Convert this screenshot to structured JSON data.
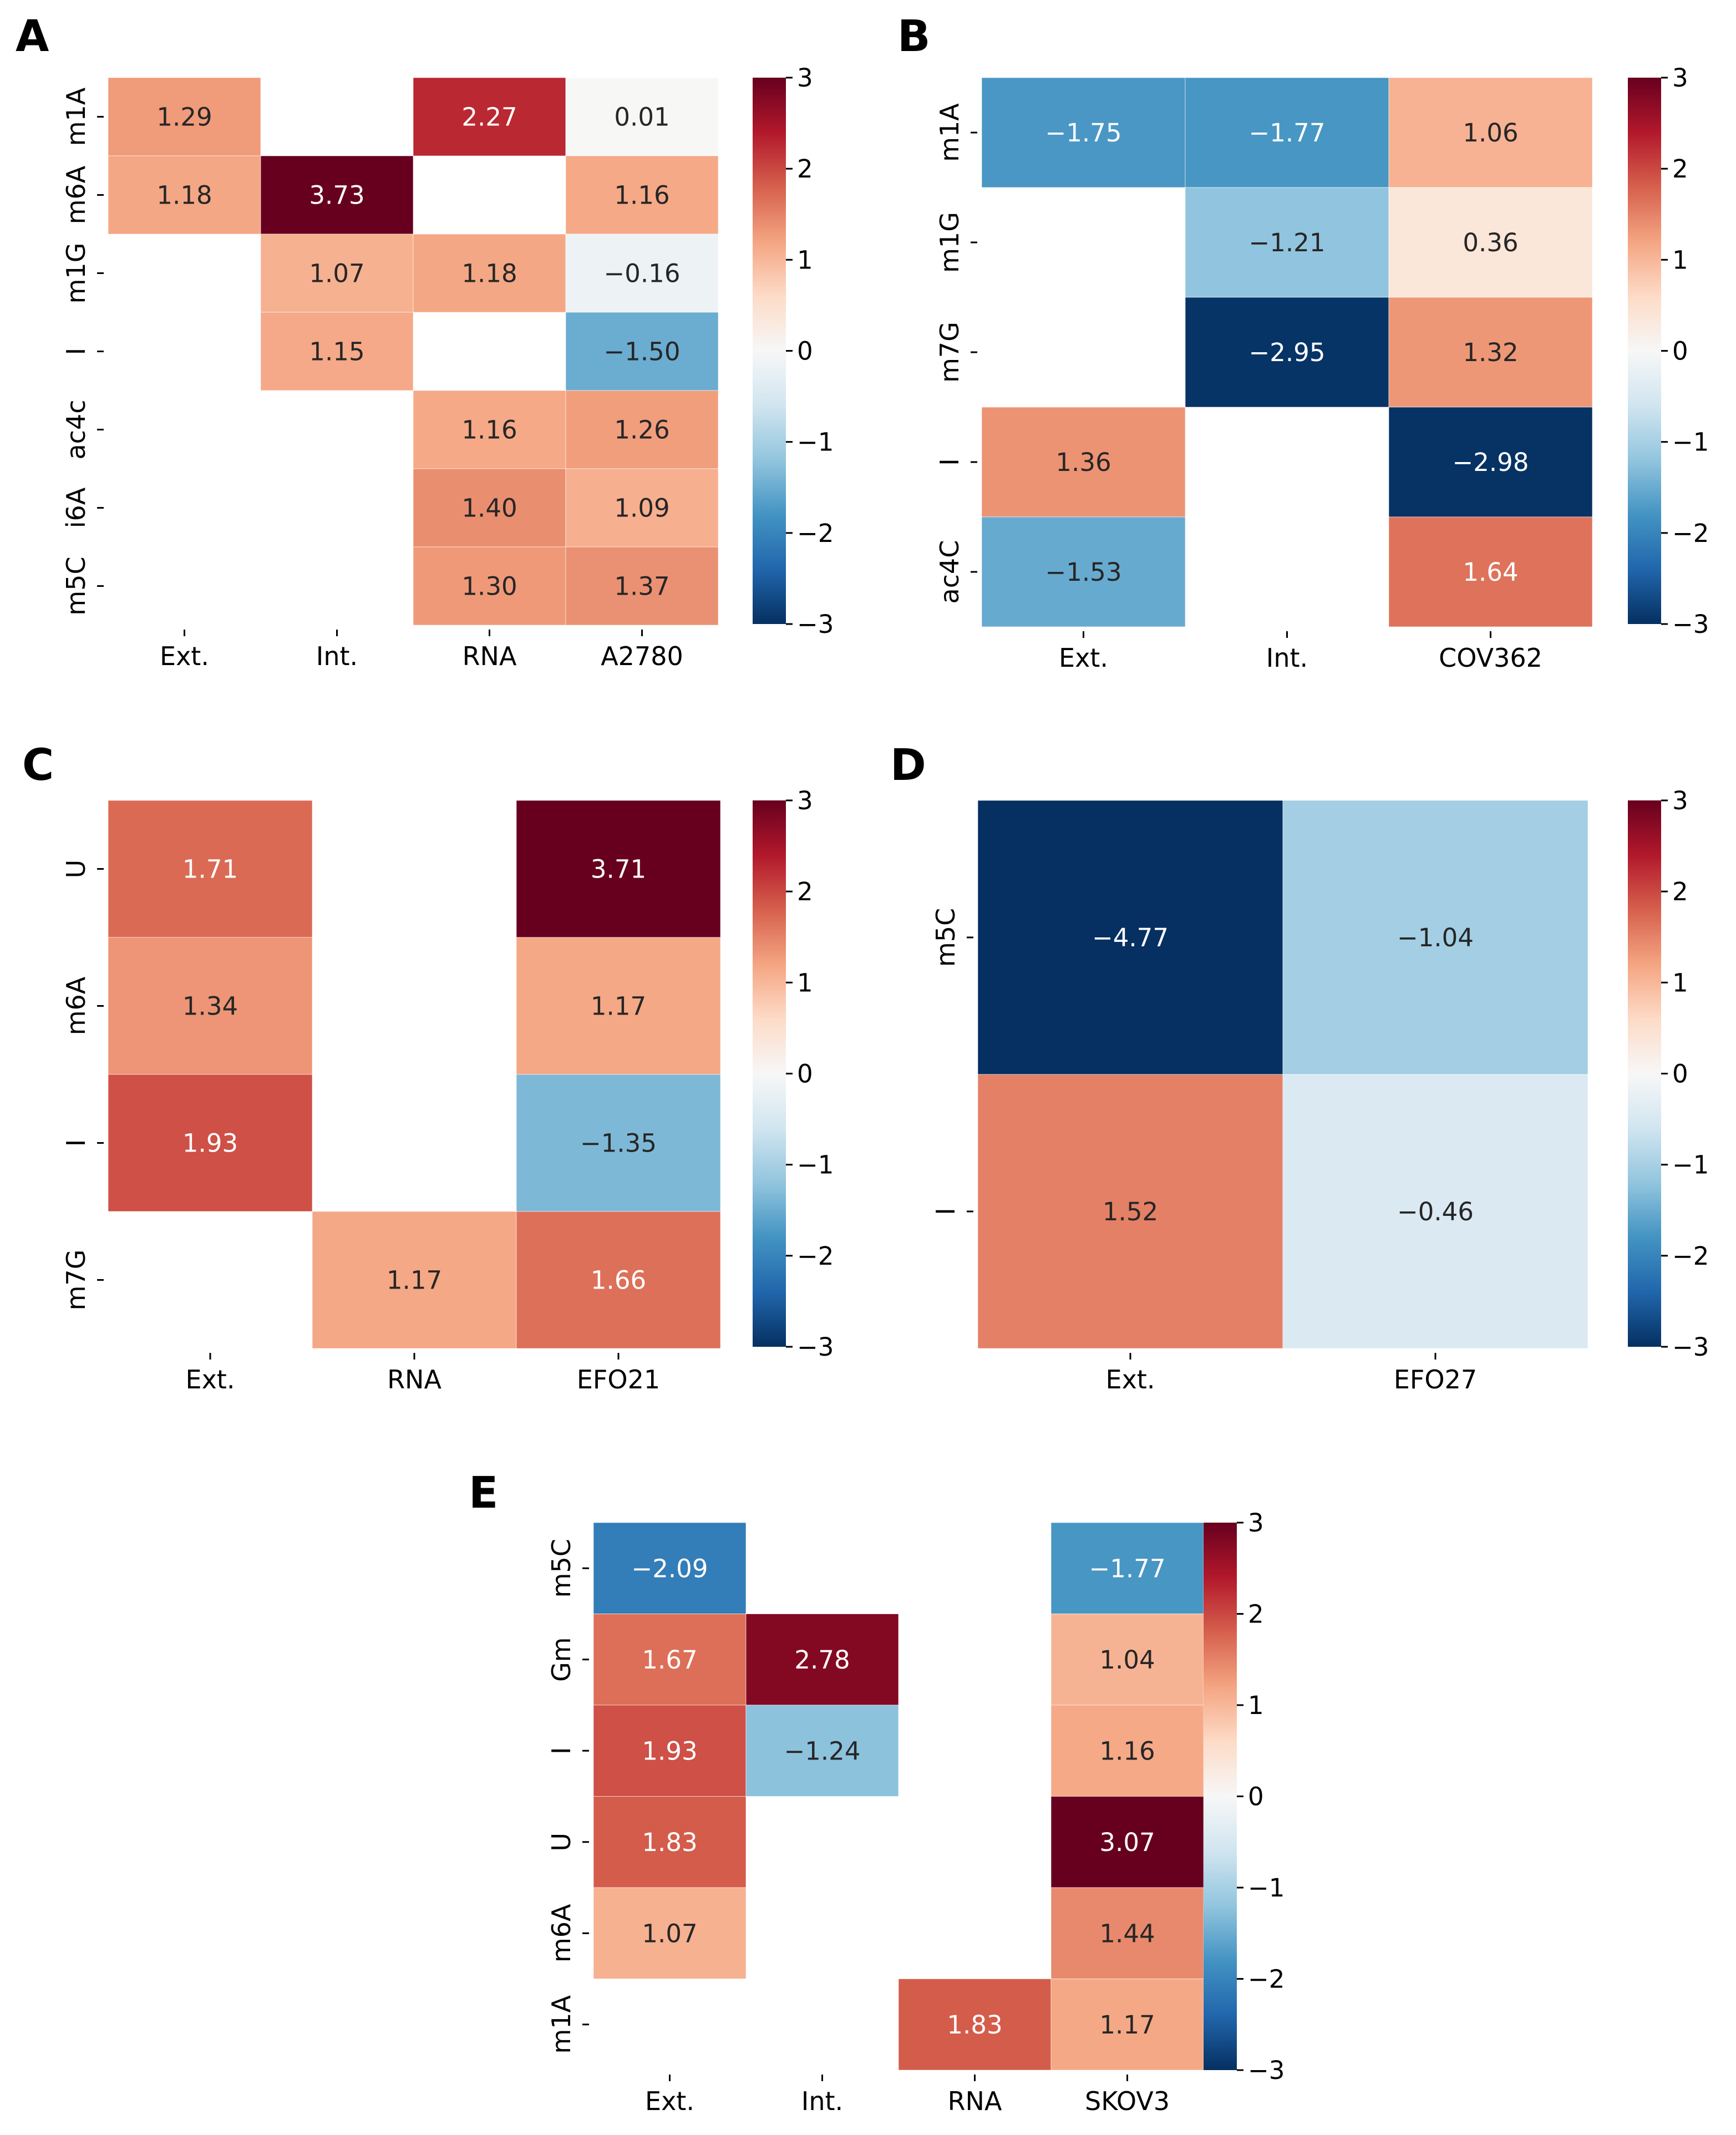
{
  "colormap": {
    "name": "RdBu_r",
    "vmin": -3,
    "vmax": 3,
    "stops": [
      "#053061",
      "#2166ac",
      "#4393c3",
      "#92c5de",
      "#d1e5f0",
      "#f7f7f7",
      "#fddbc7",
      "#f4a582",
      "#d6604d",
      "#b2182b",
      "#67001f"
    ],
    "ticks": [
      "3",
      "2",
      "1",
      "0",
      "−1",
      "−2",
      "−3"
    ]
  },
  "chart_data": [
    {
      "type": "heatmap",
      "panel": "A",
      "rows": [
        "m1A",
        "m6A",
        "m1G",
        "I",
        "ac4c",
        "i6A",
        "m5C"
      ],
      "columns": [
        "Ext.",
        "Int.",
        "RNA",
        "A2780"
      ],
      "values": [
        [
          1.29,
          null,
          2.27,
          0.01
        ],
        [
          1.18,
          3.73,
          null,
          1.16
        ],
        [
          null,
          1.07,
          1.18,
          -0.16
        ],
        [
          null,
          1.15,
          null,
          -1.5
        ],
        [
          null,
          null,
          1.16,
          1.26
        ],
        [
          null,
          null,
          1.4,
          1.09
        ],
        [
          null,
          null,
          1.3,
          1.37
        ]
      ],
      "labels": [
        [
          "1.29",
          "",
          "2.27",
          "0.01"
        ],
        [
          "1.18",
          "3.73",
          "",
          "1.16"
        ],
        [
          "",
          "1.07",
          "1.18",
          "−0.16"
        ],
        [
          "",
          "1.15",
          "",
          "−1.50"
        ],
        [
          "",
          "",
          "1.16",
          "1.26"
        ],
        [
          "",
          "",
          "1.40",
          "1.09"
        ],
        [
          "",
          "",
          "1.30",
          "1.37"
        ]
      ],
      "colorbar_range": [
        -3,
        3
      ]
    },
    {
      "type": "heatmap",
      "panel": "B",
      "rows": [
        "m1A",
        "m1G",
        "m7G",
        "I",
        "ac4C"
      ],
      "columns": [
        "Ext.",
        "Int.",
        "COV362"
      ],
      "values": [
        [
          -1.75,
          -1.77,
          1.06
        ],
        [
          null,
          -1.21,
          0.36
        ],
        [
          null,
          -2.95,
          1.32
        ],
        [
          1.36,
          null,
          -2.98
        ],
        [
          -1.53,
          null,
          1.64
        ]
      ],
      "labels": [
        [
          "−1.75",
          "−1.77",
          "1.06"
        ],
        [
          "",
          "−1.21",
          "0.36"
        ],
        [
          "",
          "−2.95",
          "1.32"
        ],
        [
          "1.36",
          "",
          "−2.98"
        ],
        [
          "−1.53",
          "",
          "1.64"
        ]
      ],
      "colorbar_range": [
        -3,
        3
      ]
    },
    {
      "type": "heatmap",
      "panel": "C",
      "rows": [
        "U",
        "m6A",
        "I",
        "m7G"
      ],
      "columns": [
        "Ext.",
        "RNA",
        "EFO21"
      ],
      "values": [
        [
          1.71,
          null,
          3.71
        ],
        [
          1.34,
          null,
          1.17
        ],
        [
          1.93,
          null,
          -1.35
        ],
        [
          null,
          1.17,
          1.66
        ]
      ],
      "labels": [
        [
          "1.71",
          "",
          "3.71"
        ],
        [
          "1.34",
          "",
          "1.17"
        ],
        [
          "1.93",
          "",
          "−1.35"
        ],
        [
          "",
          "1.17",
          "1.66"
        ]
      ],
      "colorbar_range": [
        -3,
        3
      ]
    },
    {
      "type": "heatmap",
      "panel": "D",
      "rows": [
        "m5C",
        "I"
      ],
      "columns": [
        "Ext.",
        "EFO27"
      ],
      "values": [
        [
          -4.77,
          -1.04
        ],
        [
          1.52,
          -0.46
        ]
      ],
      "labels": [
        [
          "−4.77",
          "−1.04"
        ],
        [
          "1.52",
          "−0.46"
        ]
      ],
      "colorbar_range": [
        -3,
        3
      ]
    },
    {
      "type": "heatmap",
      "panel": "E",
      "rows": [
        "m5C",
        "Gm",
        "I",
        "U",
        "m6A",
        "m1A"
      ],
      "columns": [
        "Ext.",
        "Int.",
        "RNA",
        "SKOV3"
      ],
      "values": [
        [
          -2.09,
          null,
          null,
          -1.77
        ],
        [
          1.67,
          2.78,
          null,
          1.04
        ],
        [
          1.93,
          -1.24,
          null,
          1.16
        ],
        [
          1.83,
          null,
          null,
          3.07
        ],
        [
          1.07,
          null,
          null,
          1.44
        ],
        [
          null,
          null,
          1.83,
          1.17
        ]
      ],
      "labels": [
        [
          "−2.09",
          "",
          "",
          "−1.77"
        ],
        [
          "1.67",
          "2.78",
          "",
          "1.04"
        ],
        [
          "1.93",
          "−1.24",
          "",
          "1.16"
        ],
        [
          "1.83",
          "",
          "",
          "3.07"
        ],
        [
          "1.07",
          "",
          "",
          "1.44"
        ],
        [
          "",
          "",
          "1.83",
          "1.17"
        ]
      ],
      "colorbar_range": [
        -3,
        3
      ]
    }
  ]
}
